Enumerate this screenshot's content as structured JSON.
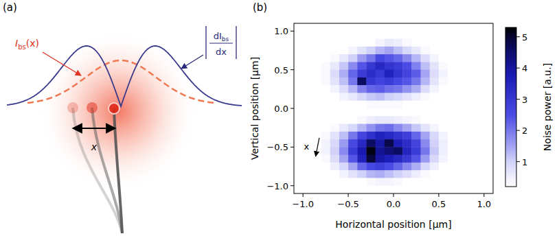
{
  "chart_data": {
    "type": "heatmap",
    "panel_label": "(b)",
    "xlabel": "Horizontal position [µm]",
    "ylabel": "Vertical position [µm]",
    "xlim": [
      -1.1,
      1.1
    ],
    "ylim": [
      -1.1,
      1.1
    ],
    "xticks": [
      {
        "value": -1,
        "label": "−1.0"
      },
      {
        "value": -0.5,
        "label": "−0.5"
      },
      {
        "value": 0,
        "label": "0.0"
      },
      {
        "value": 0.5,
        "label": "0.5"
      },
      {
        "value": 1,
        "label": "1.0"
      }
    ],
    "yticks": [
      {
        "value": -1,
        "label": "−1.0"
      },
      {
        "value": -0.5,
        "label": "−0.5"
      },
      {
        "value": 0,
        "label": "0.0"
      },
      {
        "value": 0.5,
        "label": "0.5"
      },
      {
        "value": 1,
        "label": "1.0"
      }
    ],
    "grid": false,
    "x": [
      -1.05,
      -0.95,
      -0.85,
      -0.75,
      -0.65,
      -0.55,
      -0.45,
      -0.35,
      -0.25,
      -0.15,
      -0.05,
      0.05,
      0.15,
      0.25,
      0.35,
      0.45,
      0.55,
      0.65,
      0.75,
      0.85,
      0.95,
      1.05
    ],
    "y": [
      1.05,
      0.95,
      0.85,
      0.75,
      0.65,
      0.55,
      0.45,
      0.35,
      0.25,
      0.15,
      0.05,
      -0.05,
      -0.15,
      -0.25,
      -0.35,
      -0.45,
      -0.55,
      -0.65,
      -0.75,
      -0.85,
      -0.95,
      -1.05
    ],
    "cells": [
      [
        0,
        0,
        0,
        0,
        0,
        0,
        0,
        0,
        0,
        0,
        0,
        0,
        0,
        0,
        0,
        0,
        0,
        0,
        0,
        0,
        0,
        0
      ],
      [
        0,
        0,
        0,
        0,
        0,
        0,
        0,
        0,
        0,
        0,
        0,
        0,
        0,
        0,
        0,
        0,
        0,
        0,
        0,
        0,
        0,
        0
      ],
      [
        0,
        0,
        0,
        0,
        0,
        0,
        0,
        0,
        0,
        0.4,
        0.6,
        0.5,
        0.3,
        0,
        0,
        0,
        0,
        0,
        0,
        0,
        0,
        0
      ],
      [
        0,
        0,
        0,
        0,
        0,
        0,
        0.4,
        0.7,
        1.0,
        1.3,
        1.5,
        1.2,
        0.9,
        0.6,
        0.3,
        0,
        0,
        0,
        0,
        0,
        0,
        0
      ],
      [
        0,
        0,
        0,
        0,
        0.3,
        0.6,
        1.0,
        1.6,
        2.0,
        2.6,
        2.4,
        2.2,
        1.8,
        1.3,
        0.8,
        0.4,
        0,
        0,
        0,
        0,
        0,
        0
      ],
      [
        0,
        0,
        0,
        0.3,
        0.6,
        1.1,
        1.8,
        2.4,
        3.0,
        3.4,
        3.1,
        2.9,
        2.5,
        1.9,
        1.2,
        0.7,
        0.3,
        0,
        0,
        0,
        0,
        0
      ],
      [
        0,
        0,
        0,
        0.3,
        0.8,
        1.4,
        2.2,
        2.9,
        3.3,
        3.0,
        3.6,
        3.1,
        2.7,
        2.3,
        1.5,
        0.8,
        0.4,
        0,
        0,
        0,
        0,
        0
      ],
      [
        0,
        0,
        0,
        0.3,
        0.7,
        1.2,
        2.0,
        4.6,
        3.0,
        2.7,
        2.9,
        2.6,
        2.4,
        2.0,
        1.3,
        0.7,
        0.3,
        0,
        0,
        0,
        0,
        0
      ],
      [
        0,
        0,
        0,
        0,
        0.4,
        0.8,
        1.3,
        1.9,
        2.2,
        2.3,
        2.1,
        2.0,
        1.7,
        1.4,
        0.8,
        0.4,
        0,
        0,
        0,
        0,
        0,
        0
      ],
      [
        0,
        0,
        0,
        0,
        0,
        0.4,
        0.6,
        0.9,
        1.1,
        1.2,
        1.0,
        0.9,
        0.7,
        0.5,
        0.3,
        0,
        0,
        0,
        0,
        0,
        0,
        0
      ],
      [
        0,
        0,
        0,
        0,
        0,
        0,
        0,
        0,
        0.3,
        0.3,
        0.3,
        0.3,
        0,
        0,
        0,
        0,
        0,
        0,
        0,
        0,
        0,
        0
      ],
      [
        0,
        0,
        0,
        0,
        0,
        0,
        0,
        0,
        0,
        0,
        0,
        0,
        0,
        0,
        0,
        0,
        0,
        0,
        0,
        0,
        0,
        0
      ],
      [
        0,
        0,
        0,
        0,
        0,
        0,
        0,
        0.3,
        0.5,
        0.6,
        0.6,
        0.5,
        0.4,
        0.3,
        0,
        0,
        0,
        0,
        0,
        0,
        0,
        0
      ],
      [
        0,
        0,
        0,
        0,
        0.3,
        0.6,
        0.9,
        1.3,
        1.7,
        2.0,
        2.1,
        1.8,
        1.5,
        1.1,
        0.7,
        0.4,
        0,
        0,
        0,
        0,
        0,
        0
      ],
      [
        0,
        0,
        0,
        0.3,
        0.7,
        1.2,
        2.0,
        2.7,
        3.2,
        3.6,
        3.4,
        3.1,
        2.8,
        2.2,
        1.5,
        0.9,
        0.4,
        0,
        0,
        0,
        0,
        0
      ],
      [
        0,
        0,
        0,
        0.4,
        0.9,
        1.6,
        2.6,
        3.4,
        4.6,
        3.9,
        4.8,
        3.7,
        3.3,
        2.7,
        1.8,
        1.0,
        0.5,
        0,
        0,
        0,
        0,
        0
      ],
      [
        0,
        0,
        0,
        0.4,
        1.0,
        1.8,
        2.9,
        3.8,
        5.2,
        4.1,
        4.4,
        4.6,
        3.5,
        2.9,
        2.0,
        1.1,
        0.5,
        0,
        0,
        0,
        0,
        0
      ],
      [
        0,
        0,
        0,
        0.3,
        0.8,
        1.5,
        2.4,
        3.6,
        4.9,
        3.9,
        3.7,
        3.4,
        3.0,
        2.4,
        1.6,
        0.9,
        0.4,
        0,
        0,
        0,
        0,
        0
      ],
      [
        0,
        0,
        0,
        0,
        0.5,
        0.9,
        1.5,
        2.2,
        2.6,
        2.8,
        2.5,
        2.2,
        1.8,
        1.4,
        0.9,
        0.5,
        0,
        0,
        0,
        0,
        0,
        0
      ],
      [
        0,
        0,
        0,
        0,
        0,
        0.4,
        0.7,
        1.0,
        1.3,
        1.4,
        1.2,
        1.0,
        0.8,
        0.5,
        0.3,
        0,
        0,
        0,
        0,
        0,
        0,
        0
      ],
      [
        0,
        0,
        0,
        0,
        0,
        0,
        0,
        0,
        0.3,
        0.4,
        0.4,
        0.3,
        0,
        0,
        0,
        0,
        0,
        0,
        0,
        0,
        0,
        0
      ],
      [
        0,
        0,
        0,
        0,
        0,
        0,
        0,
        0,
        0,
        0,
        0,
        0,
        0,
        0,
        0,
        0,
        0,
        0,
        0,
        0,
        0,
        0
      ]
    ],
    "colorbar": {
      "label": "Noise power [a.u.]",
      "range": [
        0.2,
        5.3
      ],
      "ticks": [
        1,
        2,
        3,
        4,
        5
      ]
    },
    "annotations": [
      {
        "text": "x"
      }
    ]
  },
  "diagram": {
    "panel_label": "(a)",
    "intensity_label": {
      "main": "I",
      "sub": "bs",
      "tail": "(x)"
    },
    "derivative_label": {
      "numerator": "dI",
      "numerator_sub": "bs",
      "denominator": "dx"
    },
    "displacement_label": "x"
  }
}
